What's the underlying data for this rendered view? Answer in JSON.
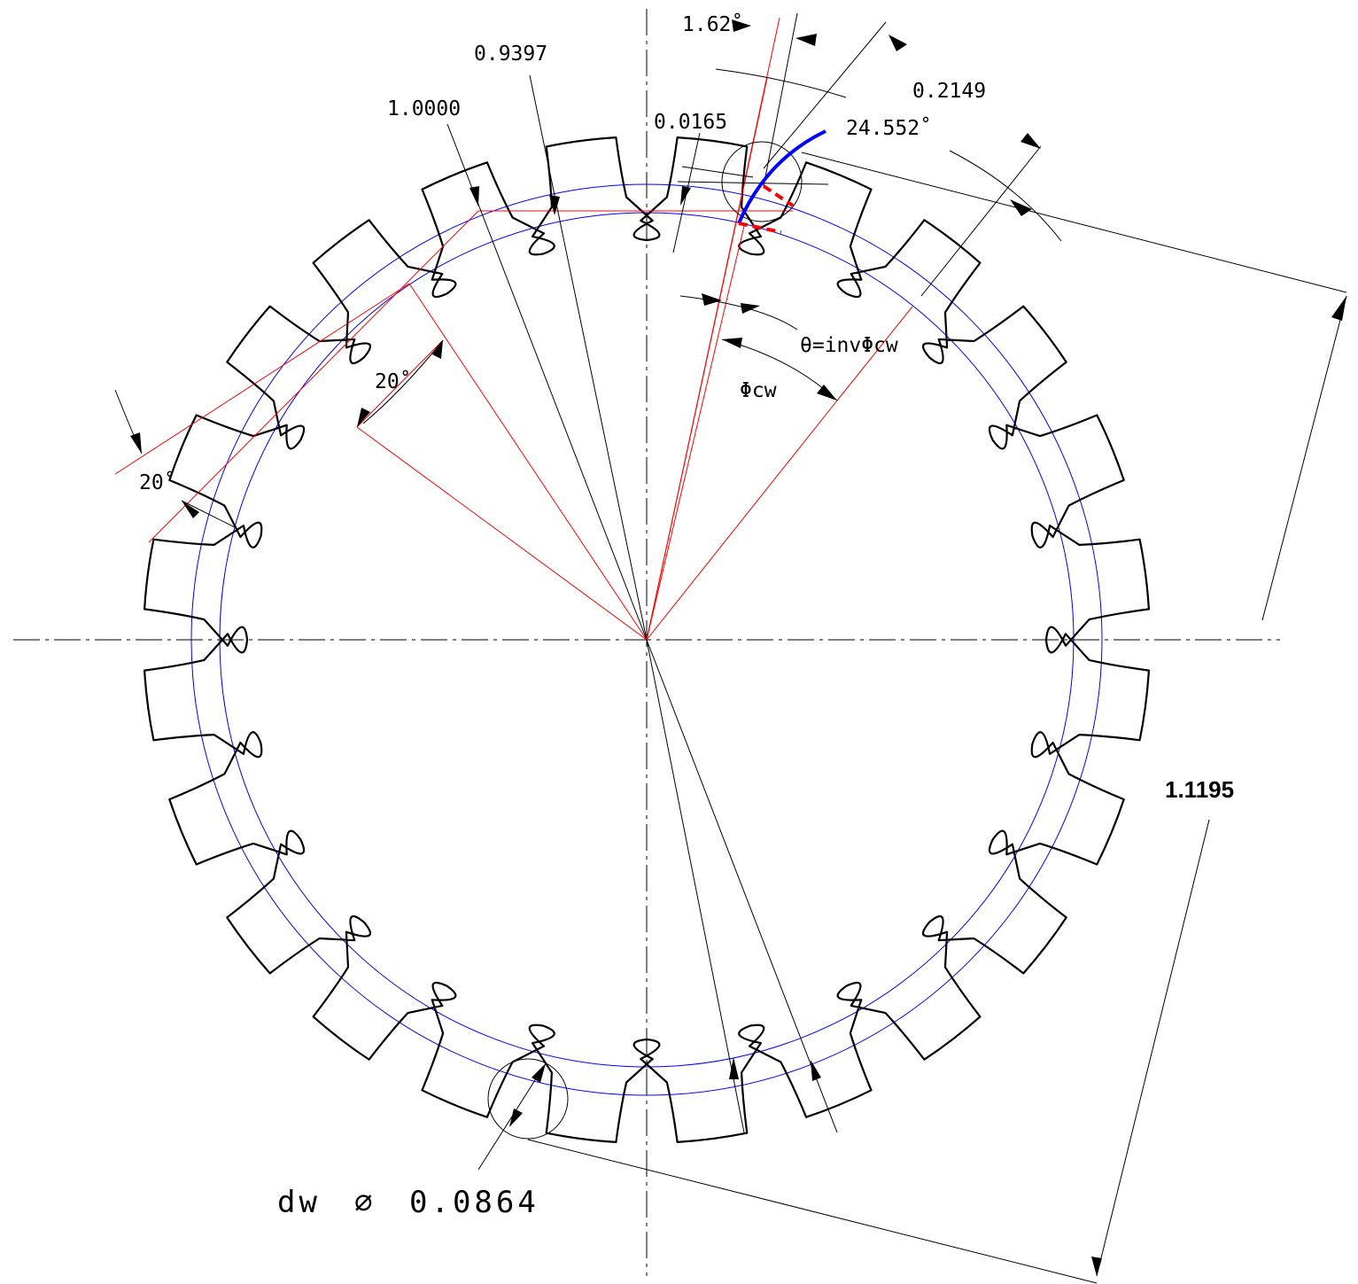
{
  "gear": {
    "teeth": 24
  },
  "labels": {
    "angle_top": "1.62˚",
    "val_09397": "0.9397",
    "val_10000": "1.0000",
    "val_00165": "0.0165",
    "val_02149": "0.2149",
    "angle_24552": "24.552˚",
    "theta": "θ=invΦcw",
    "phi": "Φcw",
    "angle_20_inner": "20˚",
    "angle_20_outer": "20˚",
    "dw_prefix": "dw",
    "diameter_symbol": "∅",
    "dw_value": "0.0864",
    "span": "1.1195"
  },
  "colors": {
    "outline": "#000000",
    "construction": "#ff0000",
    "pitch_circles": "#0000ff",
    "involute": "#0000ff",
    "contact_marks": "#ff0000"
  }
}
